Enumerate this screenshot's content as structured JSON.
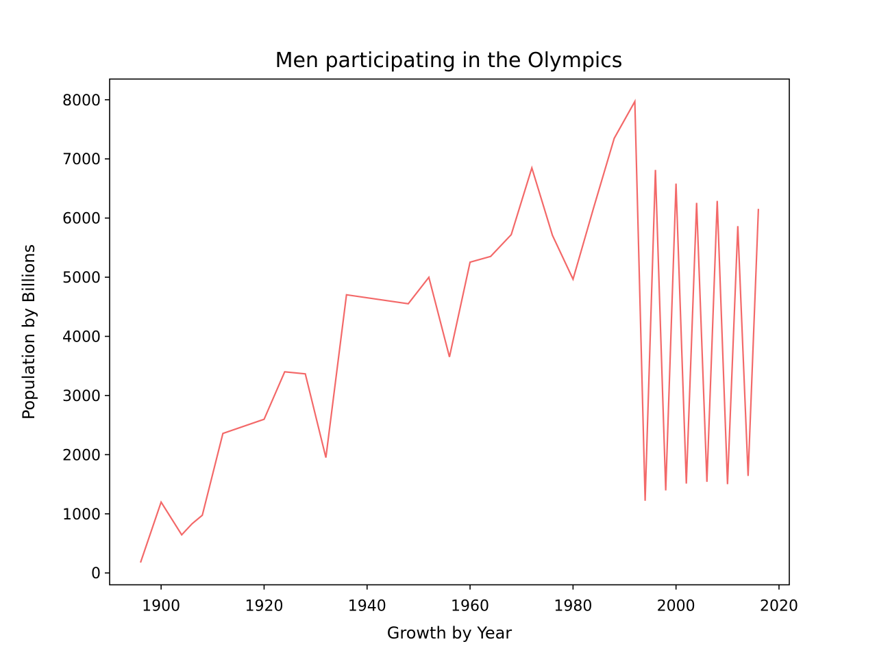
{
  "chart_data": {
    "type": "line",
    "title": "Men participating in the Olympics",
    "xlabel": "Growth by Year",
    "ylabel": "Population by Billions",
    "xlim": [
      1890,
      2022
    ],
    "ylim": [
      -200,
      8350
    ],
    "xticks": [
      1900,
      1920,
      1940,
      1960,
      1980,
      2000,
      2020
    ],
    "yticks": [
      0,
      1000,
      2000,
      3000,
      4000,
      5000,
      6000,
      7000,
      8000
    ],
    "grid": false,
    "series": [
      {
        "color": "#f36868",
        "x": [
          1896,
          1900,
          1904,
          1906,
          1908,
          1912,
          1920,
          1924,
          1928,
          1932,
          1936,
          1948,
          1952,
          1956,
          1960,
          1964,
          1968,
          1972,
          1976,
          1980,
          1984,
          1988,
          1992,
          1994,
          1996,
          1998,
          2000,
          2002,
          2004,
          2006,
          2008,
          2010,
          2012,
          2014,
          2016
        ],
        "y": [
          176,
          1198,
          645,
          831,
          976,
          2359,
          2598,
          3400,
          3366,
          1951,
          4703,
          4551,
          4998,
          3652,
          5254,
          5352,
          5720,
          6848,
          5708,
          4966,
          6174,
          7348,
          7970,
          1220,
          6814,
          1395,
          6582,
          1512,
          6257,
          1540,
          6290,
          1501,
          5863,
          1640,
          6155
        ]
      }
    ]
  }
}
